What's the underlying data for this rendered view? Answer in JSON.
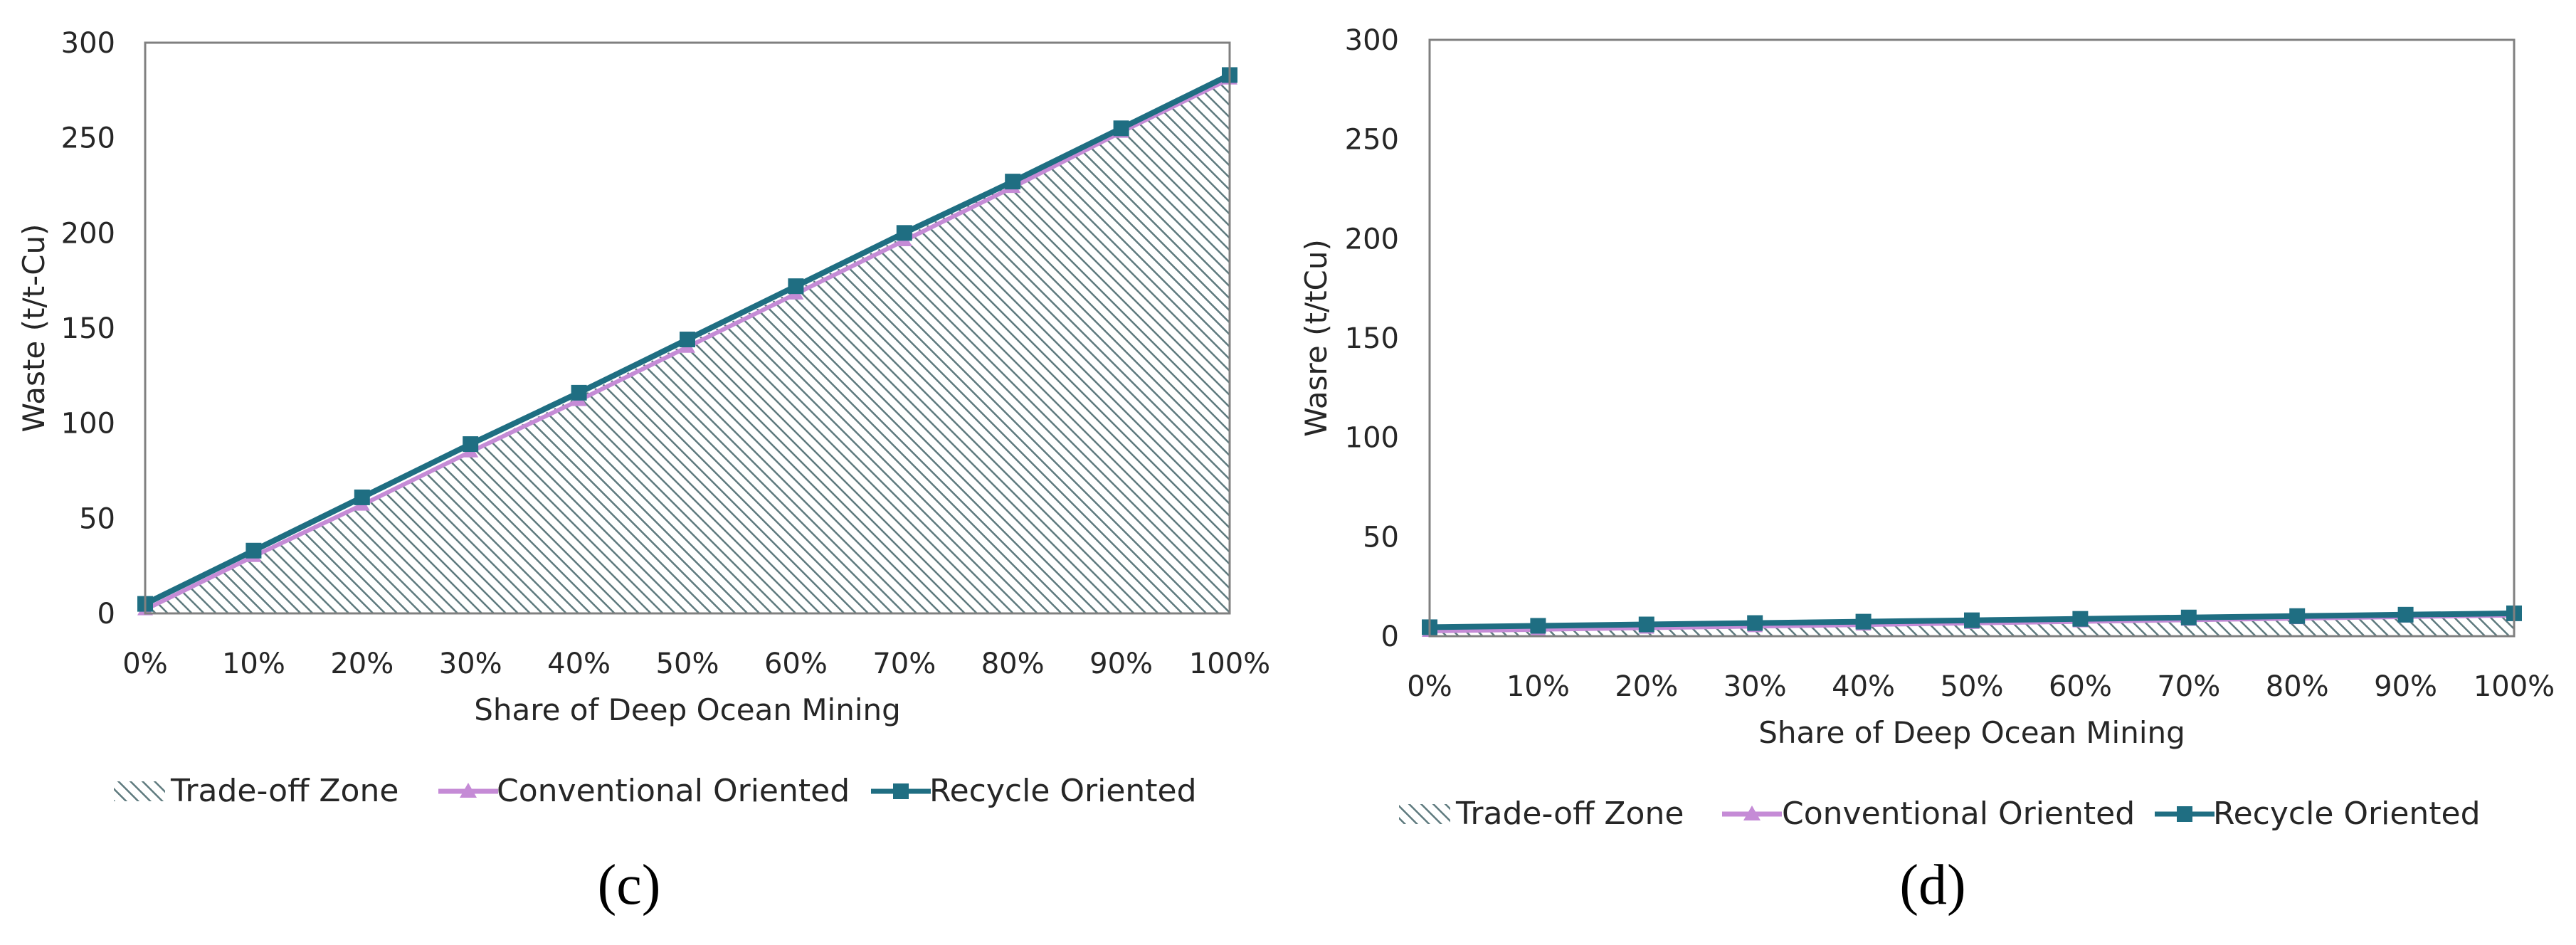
{
  "colors": {
    "recycle": "#1F6E82",
    "conventional": "#C58BD6",
    "hatch": "#5E7A7E",
    "frame": "#808080",
    "text": "#262626"
  },
  "legend": {
    "tradeoff": "Trade-off Zone",
    "conventional": "Conventional Oriented",
    "recycle": "Recycle Oriented"
  },
  "chart_data": [
    {
      "type": "line",
      "panel_label": "(c)",
      "title": "",
      "xlabel": "Share of Deep Ocean Mining",
      "ylabel": "Waste (t/t-Cu)",
      "ylim": [
        0,
        300
      ],
      "yticks": [
        "0",
        "50",
        "100",
        "150",
        "200",
        "250",
        "300"
      ],
      "categories": [
        "0%",
        "10%",
        "20%",
        "30%",
        "40%",
        "50%",
        "60%",
        "70%",
        "80%",
        "90%",
        "100%"
      ],
      "series": [
        {
          "name": "Trade-off Zone",
          "kind": "area",
          "values": [
            3,
            30,
            58,
            86,
            114,
            142,
            170,
            198,
            226,
            254,
            282
          ]
        },
        {
          "name": "Conventional Oriented",
          "kind": "line",
          "marker": "triangle",
          "values": [
            2,
            30,
            57,
            85,
            112,
            140,
            168,
            196,
            224,
            253,
            281
          ]
        },
        {
          "name": "Recycle Oriented",
          "kind": "line",
          "marker": "square",
          "values": [
            5,
            33,
            61,
            89,
            116,
            144,
            172,
            200,
            227,
            255,
            283
          ]
        }
      ]
    },
    {
      "type": "line",
      "panel_label": "(d)",
      "title": "",
      "xlabel": "Share of Deep Ocean Mining",
      "ylabel": "Wasre (t/tCu)",
      "ylim": [
        0,
        300
      ],
      "yticks": [
        "0",
        "50",
        "100",
        "150",
        "200",
        "250",
        "300"
      ],
      "categories": [
        "0%",
        "10%",
        "20%",
        "30%",
        "40%",
        "50%",
        "60%",
        "70%",
        "80%",
        "90%",
        "100%"
      ],
      "series": [
        {
          "name": "Trade-off Zone",
          "kind": "area",
          "values": [
            3,
            3.7,
            4.4,
            5.1,
            5.8,
            6.5,
            7.2,
            7.9,
            8.6,
            9.3,
            10
          ]
        },
        {
          "name": "Conventional Oriented",
          "kind": "line",
          "marker": "triangle",
          "values": [
            2.5,
            3.3,
            4.1,
            4.9,
            5.7,
            6.5,
            7.3,
            8.1,
            8.9,
            9.7,
            10.5
          ]
        },
        {
          "name": "Recycle Oriented",
          "kind": "line",
          "marker": "square",
          "values": [
            4.5,
            5.2,
            5.9,
            6.6,
            7.3,
            8.0,
            8.7,
            9.4,
            10.1,
            10.8,
            11.5
          ]
        }
      ]
    }
  ]
}
